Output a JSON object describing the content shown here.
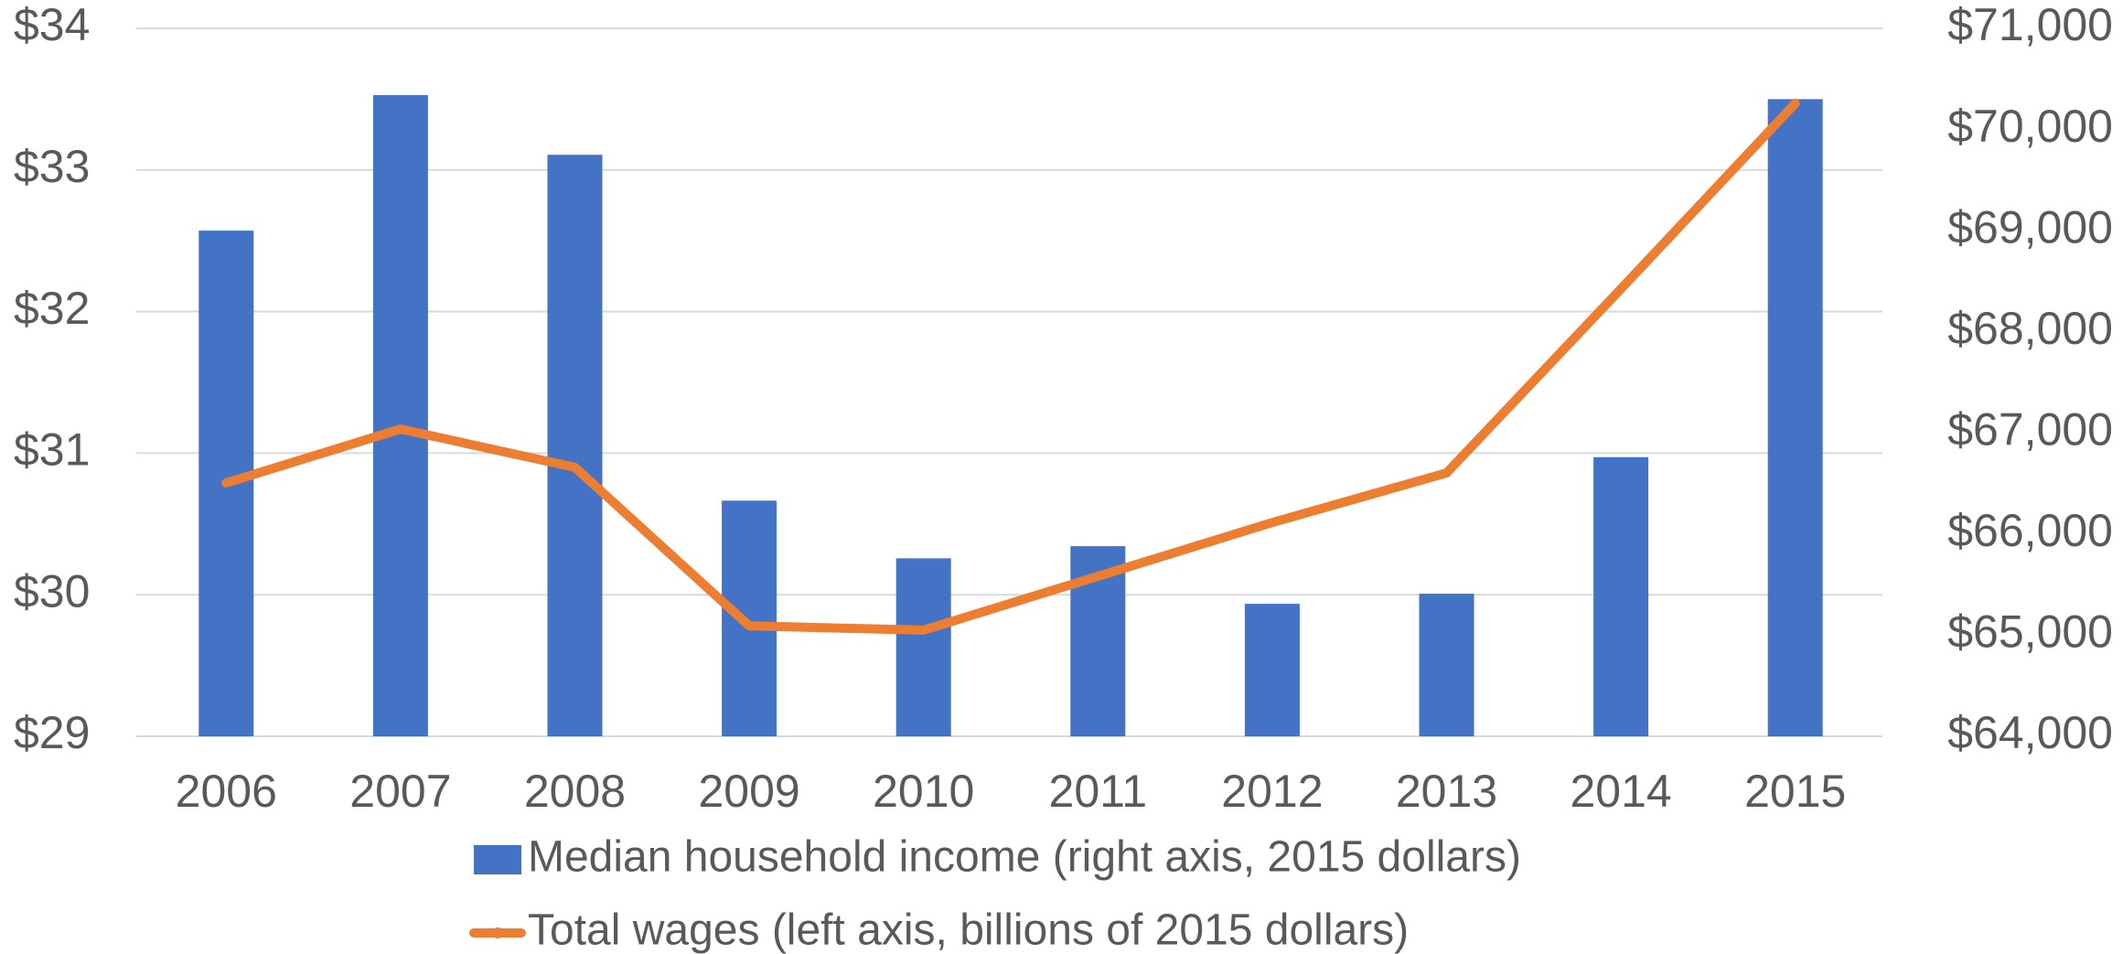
{
  "chart_data": {
    "type": "combo",
    "categories": [
      "2006",
      "2007",
      "2008",
      "2009",
      "2010",
      "2011",
      "2012",
      "2013",
      "2014",
      "2015"
    ],
    "series": [
      {
        "name": "Median household income (right axis, 2015 dollars)",
        "type": "bar",
        "axis": "y2",
        "color": "#4472c4",
        "values": [
          69000,
          70340,
          69750,
          66330,
          65760,
          65880,
          65310,
          65410,
          66760,
          70300
        ]
      },
      {
        "name": "Total wages (left axis, billions of 2015 dollars)",
        "type": "line",
        "color": "#ed7d31",
        "values": [
          30.79,
          31.17,
          30.9,
          29.78,
          29.75,
          30.13,
          30.51,
          30.86,
          32.16,
          33.47
        ]
      }
    ],
    "ylim": [
      29,
      34
    ],
    "yticks": [
      {
        "value": 29,
        "label": "$29"
      },
      {
        "value": 30,
        "label": "$30"
      },
      {
        "value": 31,
        "label": "$31"
      },
      {
        "value": 32,
        "label": "$32"
      },
      {
        "value": 33,
        "label": "$33"
      },
      {
        "value": 34,
        "label": "$34"
      }
    ],
    "y2lim": [
      64000,
      71000
    ],
    "y2ticks": [
      {
        "value": 64000,
        "label": "$64,000"
      },
      {
        "value": 65000,
        "label": "$65,000"
      },
      {
        "value": 66000,
        "label": "$66,000"
      },
      {
        "value": 67000,
        "label": "$67,000"
      },
      {
        "value": 68000,
        "label": "$68,000"
      },
      {
        "value": 69000,
        "label": "$69,000"
      },
      {
        "value": 70000,
        "label": "$70,000"
      },
      {
        "value": 71000,
        "label": "$71,000"
      }
    ],
    "grid": true,
    "legend": "bottom"
  }
}
